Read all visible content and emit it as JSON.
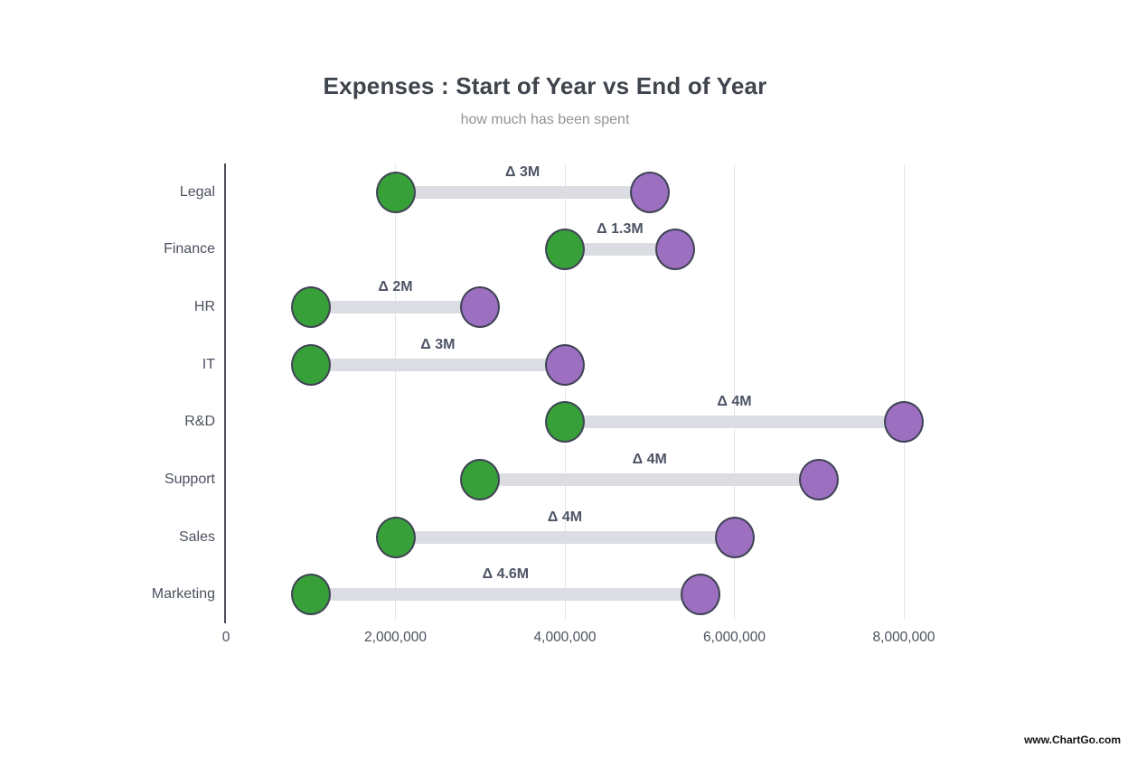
{
  "page": {
    "background": "#ffffff",
    "watermark": "www.ChartGo.com"
  },
  "chart_data": {
    "type": "dumbbell",
    "title": "Expenses : Start of Year vs End of Year",
    "subtitle": "how much has been spent",
    "categories": [
      "Legal",
      "Finance",
      "HR",
      "IT",
      "R&D",
      "Support",
      "Sales",
      "Marketing"
    ],
    "series": [
      {
        "name": "Start of Year",
        "role": "start",
        "color": "#38a038",
        "values": [
          2000000,
          4000000,
          1000000,
          1000000,
          4000000,
          3000000,
          2000000,
          1000000
        ]
      },
      {
        "name": "End of Year",
        "role": "end",
        "color": "#9c6fc1",
        "values": [
          5000000,
          5300000,
          3000000,
          4000000,
          8000000,
          7000000,
          6000000,
          5600000
        ]
      }
    ],
    "delta_labels": [
      "Δ 3M",
      "Δ 1.3M",
      "Δ 2M",
      "Δ 3M",
      "Δ 4M",
      "Δ 4M",
      "Δ 4M",
      "Δ 4.6M"
    ],
    "x_axis": {
      "range": [
        0,
        8000000
      ],
      "ticks": [
        {
          "value": 0,
          "label": "0"
        },
        {
          "value": 2000000,
          "label": "2,000,000"
        },
        {
          "value": 4000000,
          "label": "4,000,000"
        },
        {
          "value": 6000000,
          "label": "6,000,000"
        },
        {
          "value": 8000000,
          "label": "8,000,000"
        }
      ]
    },
    "grid": "vertical",
    "legend": "none",
    "colors": {
      "axis_line": "#4a4e59",
      "gridline": "#e4e5e9",
      "connector": "#dcdde2",
      "dot_stroke": "#3e4354",
      "title_text": "#3f444d",
      "subtitle_text": "#8f9398",
      "label_text": "#4b515e",
      "delta_text": "#4d5466",
      "watermark_text": "#111111"
    }
  }
}
